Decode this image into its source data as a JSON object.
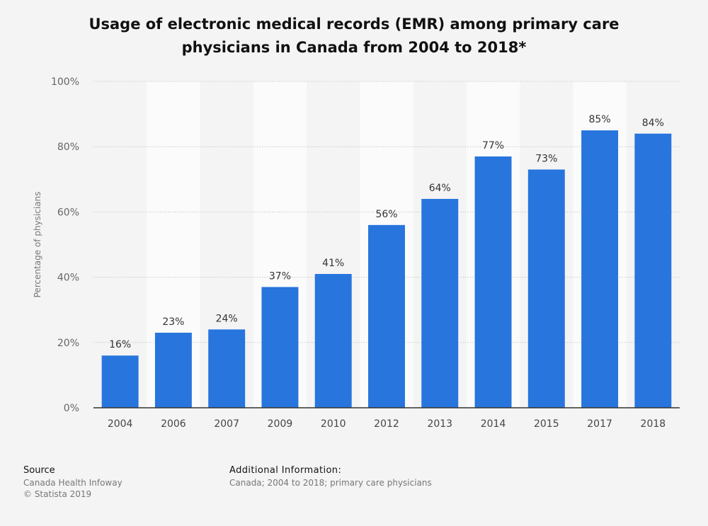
{
  "chart_data": {
    "type": "bar",
    "title": "Usage of electronic medical records (EMR) among primary care physicians in Canada from 2004 to 2018*",
    "xlabel": "",
    "ylabel": "Percentage of physicians",
    "categories": [
      "2004",
      "2006",
      "2007",
      "2009",
      "2010",
      "2012",
      "2013",
      "2014",
      "2015",
      "2017",
      "2018"
    ],
    "values": [
      16,
      23,
      24,
      37,
      41,
      56,
      64,
      77,
      73,
      85,
      84
    ],
    "value_labels": [
      "16%",
      "23%",
      "24%",
      "37%",
      "41%",
      "56%",
      "64%",
      "77%",
      "73%",
      "85%",
      "84%"
    ],
    "ylim": [
      0,
      100
    ],
    "yticks": [
      0,
      20,
      40,
      60,
      80,
      100
    ],
    "ytick_labels": [
      "0%",
      "20%",
      "40%",
      "60%",
      "80%",
      "100%"
    ],
    "grid": true,
    "bar_color": "#2775dd"
  },
  "footer": {
    "source_label": "Source",
    "source_lines": [
      "Canada Health Infoway",
      "© Statista 2019"
    ],
    "additional_label": "Additional Information:",
    "additional_text": "Canada; 2004 to 2018; primary care physicians"
  }
}
